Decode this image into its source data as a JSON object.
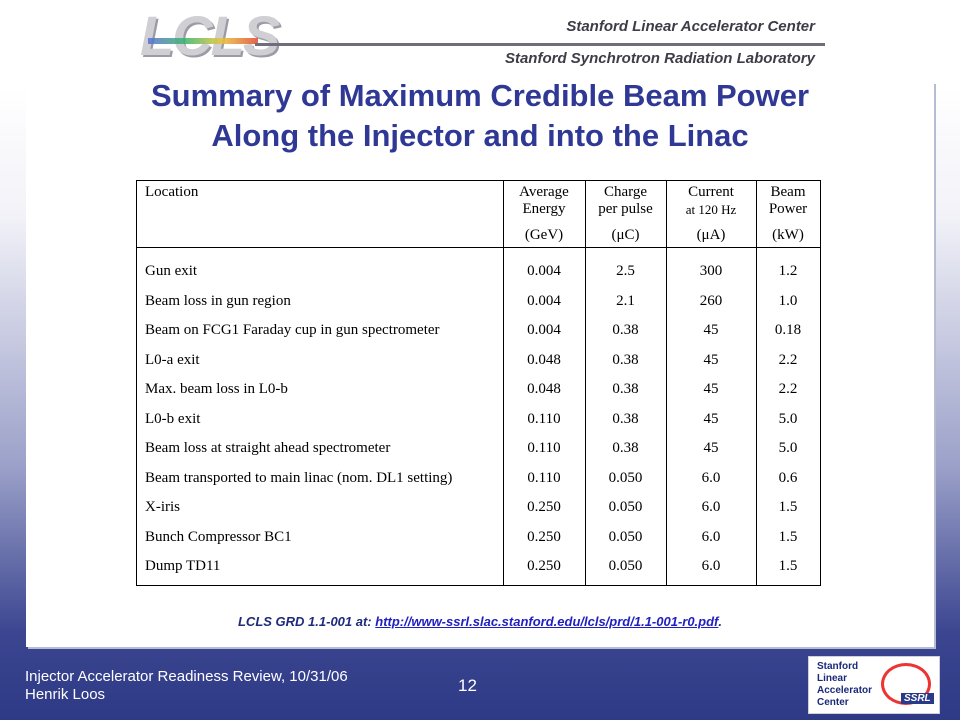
{
  "header": {
    "logo": "LCLS",
    "org_line1": "Stanford Linear Accelerator Center",
    "org_line2": "Stanford Synchrotron Radiation Laboratory"
  },
  "title_line1": "Summary of Maximum Credible Beam Power",
  "title_line2": "Along the Injector and into the Linac",
  "table": {
    "headers": {
      "location": "Location",
      "energy_l1": "Average",
      "energy_l2": "Energy",
      "energy_unit": "(GeV)",
      "charge_l1": "Charge",
      "charge_l2": "per pulse",
      "charge_unit": "(μC)",
      "current_l1": "Current",
      "current_l2": "at 120 Hz",
      "current_unit": "(μA)",
      "power_l1": "Beam",
      "power_l2": "Power",
      "power_unit": "(kW)"
    },
    "rows": [
      {
        "location": "Gun exit",
        "energy": "0.004",
        "charge": "2.5",
        "current": "300",
        "power": "1.2"
      },
      {
        "location": "Beam loss in gun region",
        "energy": "0.004",
        "charge": "2.1",
        "current": "260",
        "power": "1.0"
      },
      {
        "location": "Beam on FCG1 Faraday cup in gun spectrometer",
        "energy": "0.004",
        "charge": "0.38",
        "current": "45",
        "power": "0.18"
      },
      {
        "location": "L0-a exit",
        "energy": "0.048",
        "charge": "0.38",
        "current": "45",
        "power": "2.2"
      },
      {
        "location": "Max. beam loss in L0-b",
        "energy": "0.048",
        "charge": "0.38",
        "current": "45",
        "power": "2.2"
      },
      {
        "location": "L0-b exit",
        "energy": "0.110",
        "charge": "0.38",
        "current": "45",
        "power": "5.0"
      },
      {
        "location": "Beam loss at straight ahead spectrometer",
        "energy": "0.110",
        "charge": "0.38",
        "current": "45",
        "power": "5.0"
      },
      {
        "location": "Beam transported to main linac (nom. DL1 setting)",
        "energy": "0.110",
        "charge": "0.050",
        "current": "6.0",
        "power": "0.6"
      },
      {
        "location": "X-iris",
        "energy": "0.250",
        "charge": "0.050",
        "current": "6.0",
        "power": "1.5"
      },
      {
        "location": "Bunch Compressor BC1",
        "energy": "0.250",
        "charge": "0.050",
        "current": "6.0",
        "power": "1.5"
      },
      {
        "location": "Dump TD11",
        "energy": "0.250",
        "charge": "0.050",
        "current": "6.0",
        "power": "1.5"
      }
    ]
  },
  "footnote": {
    "prefix": "LCLS GRD 1.1-001 at: ",
    "link": "http://www-ssrl.slac.stanford.edu/lcls/prd/1.1-001-r0.pdf",
    "suffix": "."
  },
  "footer": {
    "line1": "Injector Accelerator Readiness Review, 10/31/06",
    "line2": "Henrik Loos",
    "page_number": "12",
    "badge_l1": "Stanford",
    "badge_l2": "Linear",
    "badge_l3": "Accelerator",
    "badge_l4": "Center",
    "badge_ssrl": "SSRL"
  }
}
